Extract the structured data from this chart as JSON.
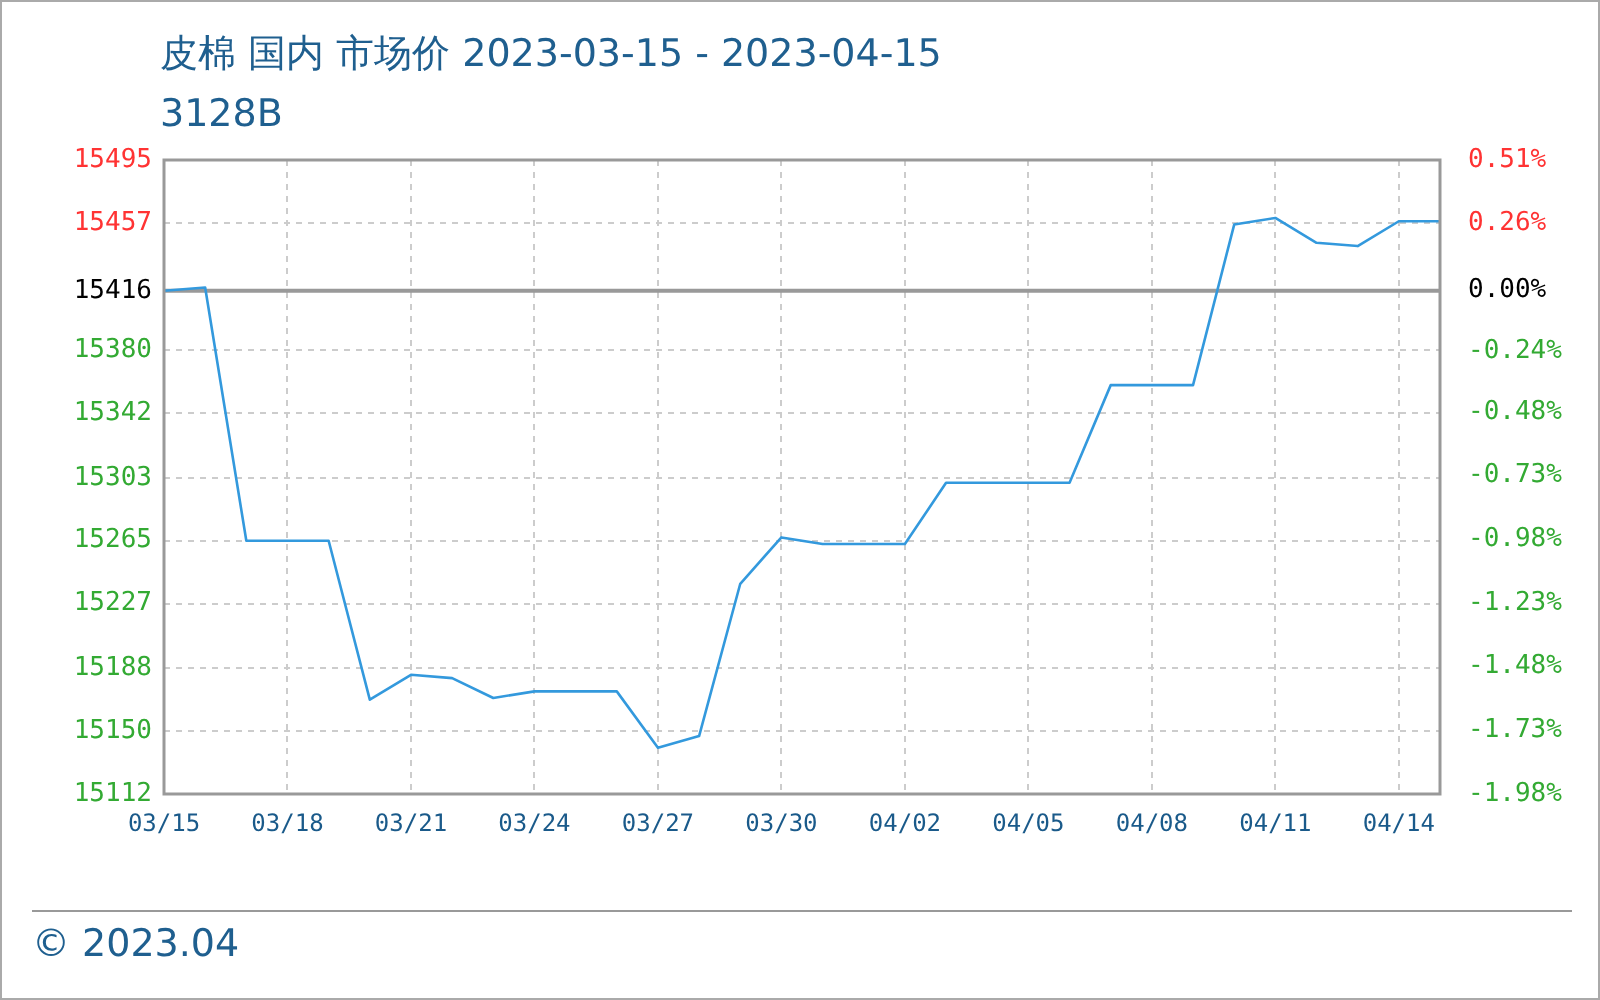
{
  "chart_data": {
    "type": "line",
    "title": "皮棉 国内 市场价 2023-03-15 - 2023-04-15",
    "subtitle": "3128B",
    "annotations": [
      "© 2023.04"
    ],
    "x": [
      "2023-03-15",
      "2023-03-16",
      "2023-03-17",
      "2023-03-18",
      "2023-03-19",
      "2023-03-20",
      "2023-03-21",
      "2023-03-22",
      "2023-03-23",
      "2023-03-24",
      "2023-03-25",
      "2023-03-26",
      "2023-03-27",
      "2023-03-28",
      "2023-03-29",
      "2023-03-30",
      "2023-03-31",
      "2023-04-01",
      "2023-04-02",
      "2023-04-03",
      "2023-04-04",
      "2023-04-05",
      "2023-04-06",
      "2023-04-07",
      "2023-04-08",
      "2023-04-09",
      "2023-04-10",
      "2023-04-11",
      "2023-04-12",
      "2023-04-13",
      "2023-04-14",
      "2023-04-15"
    ],
    "series": [
      {
        "color": "#3399dd",
        "values": [
          15416,
          15418,
          15265,
          15265,
          15265,
          15169,
          15184,
          15182,
          15170,
          15174,
          15174,
          15174,
          15140,
          15147,
          15239,
          15267,
          15263,
          15263,
          15263,
          15300,
          15300,
          15300,
          15300,
          15359,
          15359,
          15359,
          15456,
          15460,
          15445,
          15443,
          15458,
          15458
        ]
      }
    ],
    "xlim": [
      "2023-03-15",
      "2023-04-15"
    ],
    "xticks": [
      {
        "value": "2023-03-15",
        "label": "03/15"
      },
      {
        "value": "2023-03-18",
        "label": "03/18"
      },
      {
        "value": "2023-03-21",
        "label": "03/21"
      },
      {
        "value": "2023-03-24",
        "label": "03/24"
      },
      {
        "value": "2023-03-27",
        "label": "03/27"
      },
      {
        "value": "2023-03-30",
        "label": "03/30"
      },
      {
        "value": "2023-04-02",
        "label": "04/02"
      },
      {
        "value": "2023-04-05",
        "label": "04/05"
      },
      {
        "value": "2023-04-08",
        "label": "04/08"
      },
      {
        "value": "2023-04-11",
        "label": "04/11"
      },
      {
        "value": "2023-04-14",
        "label": "04/14"
      }
    ],
    "ylim": [
      15112,
      15495
    ],
    "yticks": [
      15112,
      15150,
      15188,
      15227,
      15265,
      15303,
      15342,
      15380,
      15416,
      15457,
      15495
    ],
    "y2lim": [
      -1.98,
      0.51
    ],
    "y2ticks": [
      {
        "value": -1.98,
        "label": "-1.98%"
      },
      {
        "value": -1.73,
        "label": "-1.73%"
      },
      {
        "value": -1.48,
        "label": "-1.48%"
      },
      {
        "value": -1.23,
        "label": "-1.23%"
      },
      {
        "value": -0.98,
        "label": "-0.98%"
      },
      {
        "value": -0.73,
        "label": "-0.73%"
      },
      {
        "value": -0.48,
        "label": "-0.48%"
      },
      {
        "value": -0.24,
        "label": "-0.24%"
      },
      {
        "value": 0,
        "label": "0.00%"
      },
      {
        "value": 0.26,
        "label": "0.26%"
      },
      {
        "value": 0.51,
        "label": "0.51%"
      }
    ],
    "ref_lines": [
      {
        "axis": "y",
        "value": 15416,
        "color": "#999999"
      }
    ],
    "grid": true,
    "legend": false,
    "marker": "none",
    "line_style": "solid"
  }
}
